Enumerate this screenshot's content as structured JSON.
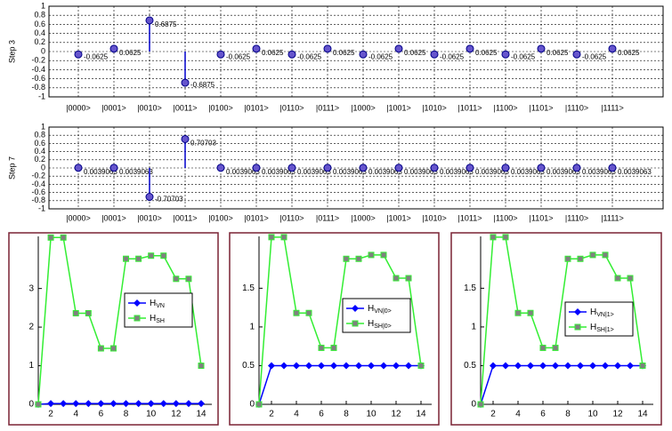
{
  "chart_data": [
    {
      "type": "stem",
      "ylabel": "Step 3",
      "categories": [
        "|0000>",
        "|0001>",
        "|0010>",
        "|0011>",
        "|0100>",
        "|0101>",
        "|0110>",
        "|0111>",
        "|1000>",
        "|1001>",
        "|1010>",
        "|1011>",
        "|1100>",
        "|1101>",
        "|1110>",
        "|1111>"
      ],
      "values": [
        -0.0625,
        0.0625,
        0.6875,
        -0.6875,
        -0.0625,
        0.0625,
        -0.0625,
        0.0625,
        -0.0625,
        0.0625,
        -0.0625,
        0.0625,
        -0.0625,
        0.0625,
        -0.0625,
        0.0625
      ],
      "color": "#0000cc",
      "ylim": [
        -1,
        1
      ],
      "yticks": [
        1,
        0.8,
        0.6,
        0.4,
        0.2,
        0,
        -0.2,
        -0.4,
        -0.6,
        -0.8,
        -1
      ],
      "grid": true
    },
    {
      "type": "stem",
      "ylabel": "Step 7",
      "categories": [
        "|0000>",
        "|0001>",
        "|0010>",
        "|0011>",
        "|0100>",
        "|0101>",
        "|0110>",
        "|0111>",
        "|1000>",
        "|1001>",
        "|1010>",
        "|1011>",
        "|1100>",
        "|1101>",
        "|1110>",
        "|1111>"
      ],
      "values": [
        0.0039063,
        0.0039063,
        -0.70703,
        0.70703,
        0.0039063,
        0.0039063,
        0.0039063,
        0.0039063,
        0.0039063,
        0.0039063,
        0.0039063,
        0.0039063,
        0.0039063,
        0.0039063,
        0.0039063,
        0.0039063
      ],
      "color": "#0000cc",
      "ylim": [
        -1,
        1
      ],
      "yticks": [
        1,
        0.8,
        0.6,
        0.4,
        0.2,
        0,
        -0.2,
        -0.4,
        -0.6,
        -0.8,
        -1
      ],
      "grid": true
    },
    {
      "type": "line",
      "x": [
        1,
        2,
        3,
        4,
        5,
        6,
        7,
        8,
        9,
        10,
        11,
        12,
        13,
        14
      ],
      "series": [
        {
          "name": "H",
          "subscript": "VN",
          "color": "#0000ff",
          "values": [
            0,
            0.02,
            0.02,
            0.02,
            0.02,
            0.02,
            0.02,
            0.02,
            0.02,
            0.02,
            0.02,
            0.02,
            0.02,
            0.02
          ]
        },
        {
          "name": "H",
          "subscript": "SH",
          "color": "#33ee33",
          "values": [
            0,
            4.32,
            4.32,
            2.36,
            2.36,
            1.45,
            1.45,
            3.77,
            3.77,
            3.85,
            3.85,
            3.25,
            3.25,
            1
          ]
        }
      ],
      "xlim": [
        1,
        14
      ],
      "xticks": [
        2,
        4,
        6,
        8,
        10,
        12,
        14
      ],
      "ylim": [
        0,
        4.35
      ],
      "yticks": [
        0,
        1,
        2,
        3
      ],
      "legend": "center right"
    },
    {
      "type": "line",
      "x": [
        1,
        2,
        3,
        4,
        5,
        6,
        7,
        8,
        9,
        10,
        11,
        12,
        13,
        14
      ],
      "series": [
        {
          "name": "H",
          "subscript": "VN|0>",
          "color": "#0000ff",
          "values": [
            0,
            0.5,
            0.5,
            0.5,
            0.5,
            0.5,
            0.5,
            0.5,
            0.5,
            0.5,
            0.5,
            0.5,
            0.5,
            0.5
          ]
        },
        {
          "name": "H",
          "subscript": "SH|0>",
          "color": "#33ee33",
          "values": [
            0,
            2.16,
            2.16,
            1.18,
            1.18,
            0.73,
            0.73,
            1.88,
            1.88,
            1.93,
            1.93,
            1.63,
            1.63,
            0.5
          ]
        }
      ],
      "xlim": [
        1,
        14
      ],
      "xticks": [
        2,
        4,
        6,
        8,
        10,
        12,
        14
      ],
      "ylim": [
        0,
        2.17
      ],
      "yticks": [
        0,
        0.5,
        1,
        1.5
      ],
      "legend": "center right"
    },
    {
      "type": "line",
      "x": [
        1,
        2,
        3,
        4,
        5,
        6,
        7,
        8,
        9,
        10,
        11,
        12,
        13,
        14
      ],
      "series": [
        {
          "name": "H",
          "subscript": "VN|1>",
          "color": "#0000ff",
          "values": [
            0,
            0.5,
            0.5,
            0.5,
            0.5,
            0.5,
            0.5,
            0.5,
            0.5,
            0.5,
            0.5,
            0.5,
            0.5,
            0.5
          ]
        },
        {
          "name": "H",
          "subscript": "SH|1>",
          "color": "#33ee33",
          "values": [
            0,
            2.16,
            2.16,
            1.18,
            1.18,
            0.73,
            0.73,
            1.88,
            1.88,
            1.93,
            1.93,
            1.63,
            1.63,
            0.5
          ]
        }
      ],
      "xlim": [
        1,
        14
      ],
      "xticks": [
        2,
        4,
        6,
        8,
        10,
        12,
        14
      ],
      "ylim": [
        0,
        2.17
      ],
      "yticks": [
        0,
        0.5,
        1,
        1.5
      ],
      "legend": "center right"
    }
  ]
}
